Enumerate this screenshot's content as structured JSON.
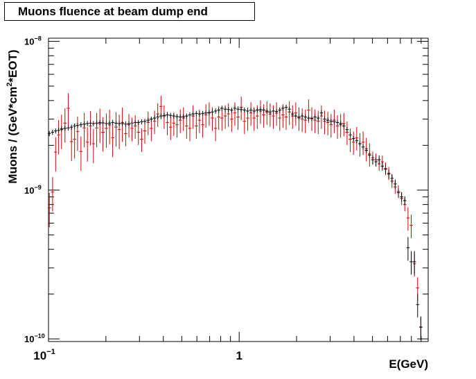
{
  "chart_data": {
    "type": "scatter",
    "title": "Muons fluence at beam dump end",
    "xlabel": "E(GeV)",
    "ylabel": "Muons / (GeV*cm^2*EOT)",
    "x_scale": "log",
    "y_scale": "log",
    "xlim": [
      0.1,
      9.8
    ],
    "ylim": [
      9.6e-11,
      1.05e-08
    ],
    "x_tick_labels": [
      {
        "value": 0.1,
        "base": "10",
        "exp": "−1"
      },
      {
        "value": 1,
        "base": "1",
        "exp": ""
      }
    ],
    "y_tick_labels": [
      {
        "value": 1e-10,
        "base": "10",
        "exp": "−10"
      },
      {
        "value": 1e-09,
        "base": "10",
        "exp": "−9"
      },
      {
        "value": 1e-08,
        "base": "10",
        "exp": "−8"
      }
    ],
    "grid": false,
    "legend": "none",
    "series": [
      {
        "color": "#000000",
        "style": "errorbar",
        "points": [
          [
            0.101,
            2.4e-09
          ],
          [
            0.105,
            2.45e-09
          ],
          [
            0.109,
            2.5e-09
          ],
          [
            0.113,
            2.52e-09
          ],
          [
            0.117,
            2.58e-09
          ],
          [
            0.122,
            2.6e-09
          ],
          [
            0.127,
            2.62e-09
          ],
          [
            0.132,
            2.65e-09
          ],
          [
            0.137,
            2.7e-09
          ],
          [
            0.142,
            2.72e-09
          ],
          [
            0.148,
            2.75e-09
          ],
          [
            0.154,
            2.78e-09
          ],
          [
            0.16,
            2.8e-09
          ],
          [
            0.166,
            2.82e-09
          ],
          [
            0.172,
            2.8e-09
          ],
          [
            0.179,
            2.82e-09
          ],
          [
            0.186,
            2.85e-09
          ],
          [
            0.193,
            2.83e-09
          ],
          [
            0.201,
            2.8e-09
          ],
          [
            0.209,
            2.82e-09
          ],
          [
            0.217,
            2.85e-09
          ],
          [
            0.226,
            2.82e-09
          ],
          [
            0.235,
            2.8e-09
          ],
          [
            0.244,
            2.8e-09
          ],
          [
            0.254,
            2.78e-09
          ],
          [
            0.264,
            2.8e-09
          ],
          [
            0.274,
            2.82e-09
          ],
          [
            0.285,
            2.85e-09
          ],
          [
            0.296,
            2.85e-09
          ],
          [
            0.308,
            2.88e-09
          ],
          [
            0.32,
            2.9e-09
          ],
          [
            0.333,
            2.95e-09
          ],
          [
            0.346,
            3e-09
          ],
          [
            0.36,
            3.05e-09
          ],
          [
            0.374,
            3.1e-09
          ],
          [
            0.389,
            3.15e-09
          ],
          [
            0.404,
            3.18e-09
          ],
          [
            0.42,
            3.2e-09
          ],
          [
            0.437,
            3.18e-09
          ],
          [
            0.454,
            3.15e-09
          ],
          [
            0.472,
            3.12e-09
          ],
          [
            0.491,
            3.1e-09
          ],
          [
            0.51,
            3.12e-09
          ],
          [
            0.53,
            3.15e-09
          ],
          [
            0.551,
            3.2e-09
          ],
          [
            0.573,
            3.25e-09
          ],
          [
            0.596,
            3.28e-09
          ],
          [
            0.619,
            3.25e-09
          ],
          [
            0.644,
            3.28e-09
          ],
          [
            0.669,
            3.3e-09
          ],
          [
            0.696,
            3.32e-09
          ],
          [
            0.723,
            3.35e-09
          ],
          [
            0.752,
            3.4e-09
          ],
          [
            0.781,
            3.45e-09
          ],
          [
            0.812,
            3.55e-09
          ],
          [
            0.845,
            3.5e-09
          ],
          [
            0.878,
            3.48e-09
          ],
          [
            0.913,
            3.45e-09
          ],
          [
            0.949,
            3.55e-09
          ],
          [
            0.986,
            3.5e-09
          ],
          [
            1.025,
            3.48e-09
          ],
          [
            1.066,
            3.45e-09
          ],
          [
            1.108,
            3.4e-09
          ],
          [
            1.152,
            3.45e-09
          ],
          [
            1.197,
            3.4e-09
          ],
          [
            1.244,
            3.45e-09
          ],
          [
            1.293,
            3.48e-09
          ],
          [
            1.345,
            3.45e-09
          ],
          [
            1.398,
            3.4e-09
          ],
          [
            1.453,
            3.35e-09
          ],
          [
            1.51,
            3.4e-09
          ],
          [
            1.57,
            3.38e-09
          ],
          [
            1.632,
            3.45e-09
          ],
          [
            1.696,
            3.55e-09
          ],
          [
            1.763,
            3.6e-09
          ],
          [
            1.833,
            3.5e-09
          ],
          [
            1.905,
            3.25e-09
          ],
          [
            1.98,
            3.15e-09
          ],
          [
            2.058,
            3.1e-09
          ],
          [
            2.14,
            3.15e-09
          ],
          [
            2.224,
            3.1e-09
          ],
          [
            2.312,
            3.05e-09
          ],
          [
            2.403,
            3.02e-09
          ],
          [
            2.498,
            3.1e-09
          ],
          [
            2.597,
            3.05e-09
          ],
          [
            2.699,
            3.3e-09
          ],
          [
            2.806,
            3e-09
          ],
          [
            2.917,
            2.95e-09
          ],
          [
            3.032,
            2.9e-09
          ],
          [
            3.151,
            2.88e-09
          ],
          [
            3.276,
            2.85e-09
          ],
          [
            3.405,
            2.8e-09
          ],
          [
            3.54,
            2.7e-09
          ],
          [
            3.679,
            2.55e-09
          ],
          [
            3.825,
            2.35e-09
          ],
          [
            3.976,
            2.22e-09
          ],
          [
            4.133,
            2.15e-09
          ],
          [
            4.296,
            2.05e-09
          ],
          [
            4.466,
            1.95e-09
          ],
          [
            4.642,
            1.85e-09
          ],
          [
            4.826,
            1.72e-09
          ],
          [
            5.016,
            1.6e-09
          ],
          [
            5.214,
            1.55e-09
          ],
          [
            5.42,
            1.6e-09
          ],
          [
            5.634,
            1.45e-09
          ],
          [
            5.857,
            1.38e-09
          ],
          [
            6.088,
            1.28e-09
          ],
          [
            6.329,
            1.2e-09
          ],
          [
            6.578,
            1.1e-09
          ],
          [
            6.838,
            9.6e-10
          ],
          [
            7.108,
            9e-10
          ],
          [
            7.389,
            8.5e-10
          ],
          [
            7.68,
            4.1e-10
          ],
          [
            7.984,
            3.3e-10
          ],
          [
            8.299,
            3.3e-10
          ],
          [
            8.627,
            1.7e-10
          ],
          [
            8.967,
            1.2e-10
          ]
        ]
      },
      {
        "color": "#d00000",
        "style": "errorbar",
        "points": [
          [
            0.101,
            7.6e-10
          ],
          [
            0.105,
            9.7e-10
          ],
          [
            0.109,
            1.8e-09
          ],
          [
            0.113,
            2.35e-09
          ],
          [
            0.117,
            2.55e-09
          ],
          [
            0.122,
            2.82e-09
          ],
          [
            0.127,
            3.55e-09
          ],
          [
            0.132,
            2.12e-09
          ],
          [
            0.137,
            2.2e-09
          ],
          [
            0.142,
            2.48e-09
          ],
          [
            0.148,
            1.82e-09
          ],
          [
            0.154,
            2.62e-09
          ],
          [
            0.16,
            2.1e-09
          ],
          [
            0.166,
            2.7e-09
          ],
          [
            0.172,
            2.05e-09
          ],
          [
            0.179,
            2.62e-09
          ],
          [
            0.186,
            2.8e-09
          ],
          [
            0.193,
            2.45e-09
          ],
          [
            0.201,
            2.6e-09
          ],
          [
            0.209,
            2.75e-09
          ],
          [
            0.217,
            2.25e-09
          ],
          [
            0.226,
            2.65e-09
          ],
          [
            0.235,
            2.55e-09
          ],
          [
            0.244,
            2.85e-09
          ],
          [
            0.254,
            2.4e-09
          ],
          [
            0.264,
            2.75e-09
          ],
          [
            0.274,
            2.6e-09
          ],
          [
            0.285,
            2.7e-09
          ],
          [
            0.296,
            2.45e-09
          ],
          [
            0.308,
            2.2e-09
          ],
          [
            0.32,
            2.5e-09
          ],
          [
            0.333,
            2.85e-09
          ],
          [
            0.346,
            2.6e-09
          ],
          [
            0.36,
            2.9e-09
          ],
          [
            0.374,
            3.25e-09
          ],
          [
            0.389,
            3.65e-09
          ],
          [
            0.404,
            3.15e-09
          ],
          [
            0.42,
            2.85e-09
          ],
          [
            0.437,
            2.65e-09
          ],
          [
            0.454,
            2.82e-09
          ],
          [
            0.472,
            2.75e-09
          ],
          [
            0.491,
            2.95e-09
          ],
          [
            0.51,
            3.05e-09
          ],
          [
            0.53,
            2.7e-09
          ],
          [
            0.551,
            2.6e-09
          ],
          [
            0.573,
            3.15e-09
          ],
          [
            0.596,
            2.7e-09
          ],
          [
            0.619,
            2.95e-09
          ],
          [
            0.644,
            2.75e-09
          ],
          [
            0.669,
            3.2e-09
          ],
          [
            0.696,
            3.3e-09
          ],
          [
            0.723,
            3.05e-09
          ],
          [
            0.752,
            2.6e-09
          ],
          [
            0.781,
            3.1e-09
          ],
          [
            0.812,
            3.05e-09
          ],
          [
            0.845,
            3.15e-09
          ],
          [
            0.878,
            3.25e-09
          ],
          [
            0.913,
            3e-09
          ],
          [
            0.949,
            3.3e-09
          ],
          [
            0.986,
            3.1e-09
          ],
          [
            1.025,
            3.6e-09
          ],
          [
            1.066,
            2.9e-09
          ],
          [
            1.108,
            3.05e-09
          ],
          [
            1.152,
            3.3e-09
          ],
          [
            1.197,
            3.05e-09
          ],
          [
            1.244,
            3.15e-09
          ],
          [
            1.293,
            3.4e-09
          ],
          [
            1.345,
            3.2e-09
          ],
          [
            1.398,
            3.35e-09
          ],
          [
            1.453,
            3.25e-09
          ],
          [
            1.51,
            3.15e-09
          ],
          [
            1.57,
            3.3e-09
          ],
          [
            1.632,
            3.05e-09
          ],
          [
            1.696,
            3.2e-09
          ],
          [
            1.763,
            3.1e-09
          ],
          [
            1.833,
            3.35e-09
          ],
          [
            1.905,
            3.15e-09
          ],
          [
            1.98,
            3.3e-09
          ],
          [
            2.058,
            3.05e-09
          ],
          [
            2.14,
            3e-09
          ],
          [
            2.224,
            2.95e-09
          ],
          [
            2.312,
            3.45e-09
          ],
          [
            2.403,
            3.05e-09
          ],
          [
            2.498,
            2.95e-09
          ],
          [
            2.597,
            2.9e-09
          ],
          [
            2.699,
            3.15e-09
          ],
          [
            2.806,
            2.9e-09
          ],
          [
            2.917,
            2.85e-09
          ],
          [
            3.032,
            2.75e-09
          ],
          [
            3.151,
            2.95e-09
          ],
          [
            3.276,
            2.7e-09
          ],
          [
            3.405,
            2.75e-09
          ],
          [
            3.54,
            2.8e-09
          ],
          [
            3.679,
            2.45e-09
          ],
          [
            3.825,
            2.2e-09
          ],
          [
            3.976,
            2.1e-09
          ],
          [
            4.133,
            2.25e-09
          ],
          [
            4.296,
            2.05e-09
          ],
          [
            4.466,
            2.1e-09
          ],
          [
            4.642,
            1.9e-09
          ],
          [
            4.826,
            1.75e-09
          ],
          [
            5.016,
            1.65e-09
          ],
          [
            5.214,
            1.6e-09
          ],
          [
            5.42,
            1.5e-09
          ],
          [
            5.634,
            1.55e-09
          ],
          [
            5.857,
            1.4e-09
          ],
          [
            6.088,
            1.3e-09
          ],
          [
            6.329,
            1.15e-09
          ],
          [
            6.578,
            1.05e-09
          ],
          [
            6.838,
            9.8e-10
          ],
          [
            7.108,
            8.8e-10
          ],
          [
            7.389,
            8e-10
          ],
          [
            7.68,
            6.5e-10
          ],
          [
            7.984,
            5.8e-10
          ],
          [
            8.299,
            3.2e-10
          ],
          [
            8.627,
            2.2e-10
          ],
          [
            8.967,
            1.2e-10
          ]
        ]
      }
    ]
  }
}
